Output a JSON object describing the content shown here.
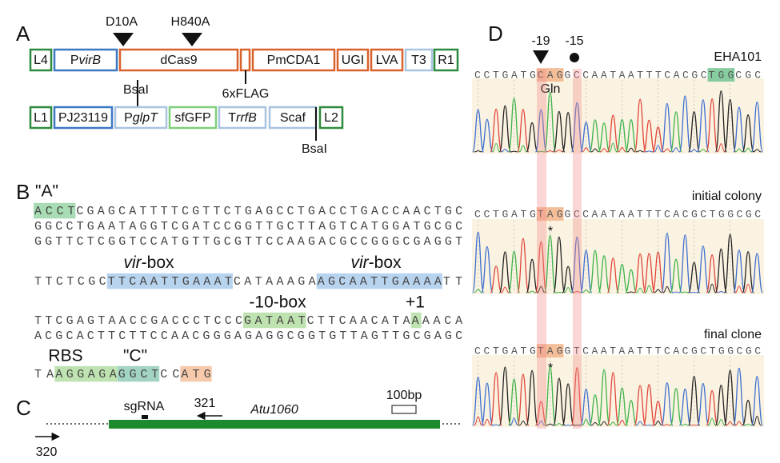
{
  "panel_a": {
    "label": "A",
    "mutations": [
      "D10A",
      "H840A"
    ],
    "row1": [
      {
        "text": "L4"
      },
      {
        "text": "P",
        "italic": "virB"
      },
      {
        "text": "dCas9"
      },
      {
        "text": "PmCDA1"
      },
      {
        "text": "UGI"
      },
      {
        "text": "LVA"
      },
      {
        "text": "T3"
      },
      {
        "text": "R1"
      }
    ],
    "row2": [
      {
        "text": "L1"
      },
      {
        "text": "PJ23119"
      },
      {
        "text": "P",
        "italic": "glpT"
      },
      {
        "text": "sfGFP"
      },
      {
        "text": "T",
        "italic": "rrfB"
      },
      {
        "text": "Scaf"
      },
      {
        "text": "L2"
      }
    ],
    "bsai": [
      "BsaI",
      "BsaI"
    ],
    "flag": "6xFLAG"
  },
  "panel_b": {
    "label": "B",
    "quote_a": "\"A\"",
    "lines": [
      [
        {
          "text": "ACCT",
          "highlight": "#a8dcb4"
        },
        {
          "text": "CGAGCATTTTCGTTCTGAGCCTGACCTGACCAACTGC"
        }
      ],
      [
        {
          "text": "GGCCTGAATAGGTCGATCCGGTTGCTTAGTCATGGATGCGC"
        }
      ],
      [
        {
          "text": "GGTTCTCGGTCCATGTTGCGTTCCAAGACGCCGGGCGAGGT"
        }
      ],
      [
        {
          "text": "TTCTCGC"
        },
        {
          "text": "TTCAATTGAAAT",
          "highlight": "#b7d3ee"
        },
        {
          "text": "CATAAAGA"
        },
        {
          "text": "AGCAATTGAAAA",
          "highlight": "#b7d3ee"
        },
        {
          "text": "TT"
        }
      ],
      [
        {
          "text": "TTCGAGTAACCGACCCTCCC"
        },
        {
          "text": "GATAAT",
          "highlight": "#bfe3b0"
        },
        {
          "text": "CTTCAACATA"
        },
        {
          "text": "A",
          "highlight": "#bfe3b0"
        },
        {
          "text": "AACA"
        }
      ],
      [
        {
          "text": "ACGCACTTCTTCCAACGGGAGAGGCGGTGTTAGTTGCGAGC"
        }
      ],
      [
        {
          "text": "TA"
        },
        {
          "text": "AGGAGA",
          "highlight": "#bfe3b0"
        },
        {
          "text": "GGCT",
          "highlight": "#a3d3c3"
        },
        {
          "text": "CC"
        },
        {
          "text": "ATG",
          "highlight": "#f6c9aa"
        }
      ]
    ],
    "vir_boxes": [
      {
        "italic": "vir",
        "text": "-box"
      },
      {
        "italic": "vir",
        "text": "-box"
      }
    ],
    "minus10": "-10-box",
    "plus1": "+1",
    "rbs": "RBS",
    "quote_c": "\"C\""
  },
  "panel_c": {
    "label": "C",
    "sgrna": "sgRNA",
    "primer_321": "321",
    "gene": "Atu1060",
    "scale": "100bp",
    "primer_320": "320"
  },
  "panel_d": {
    "label": "D",
    "positions": [
      "-19",
      "-15"
    ],
    "traces": [
      {
        "title": "EHA101",
        "sequence": [
          {
            "text": "CCTGATG"
          },
          {
            "text": "CAG",
            "highlight": "#f4bf98"
          },
          {
            "text": "GCCAATAATTTCACGC"
          },
          {
            "text": "TGG",
            "highlight": "#86cc9f"
          },
          {
            "text": "CGC"
          }
        ],
        "note": "Gln"
      },
      {
        "title": "initial colony",
        "sequence": [
          {
            "text": "CCTGATG"
          },
          {
            "text": "TAG",
            "highlight": "#f4bf98"
          },
          {
            "text": "GCCAATAATTTCACGCTGGCGC"
          }
        ],
        "note": "*"
      },
      {
        "title": "final clone",
        "sequence": [
          {
            "text": "CCTGATG"
          },
          {
            "text": "TAG",
            "highlight": "#f4bf98"
          },
          {
            "text": "GTCAATAATTTCACGCTGGCGC"
          }
        ],
        "note": "*"
      }
    ]
  }
}
